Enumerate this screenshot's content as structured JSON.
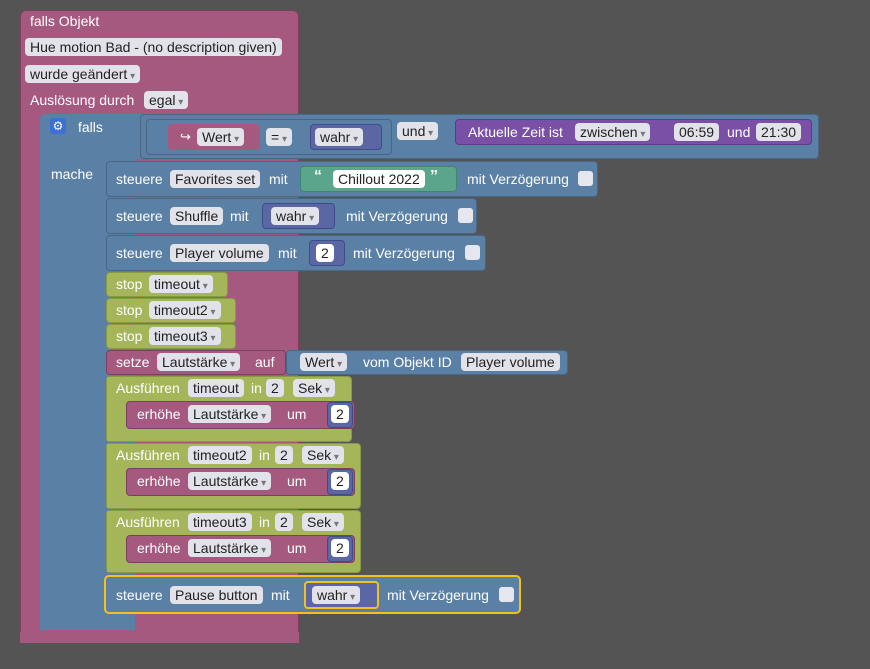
{
  "event_block": {
    "title": "falls Objekt",
    "object_field": "Hue motion Bad - (no description given)",
    "change_dropdown": "wurde geändert",
    "trigger_label": "Auslösung durch",
    "trigger_dropdown": "egal"
  },
  "if_block": {
    "falls_label": "falls",
    "mache_label": "mache",
    "condition": {
      "var_dropdown": "Wert",
      "operator": "=",
      "value_dropdown": "wahr",
      "and_dropdown": "und",
      "time_label": "Aktuelle Zeit ist",
      "range_dropdown": "zwischen",
      "time_start": "06:59",
      "time_and": "und",
      "time_end": "21:30"
    }
  },
  "statements": {
    "steuere_label": "steuere",
    "mit_label": "mit",
    "delay_label": "mit Verzögerung",
    "stop_label": "stop",
    "favorites": {
      "target": "Favorites set",
      "string_value": "Chillout 2022"
    },
    "shuffle": {
      "target": "Shuffle",
      "value": "wahr"
    },
    "volume": {
      "target": "Player volume",
      "value": "2"
    },
    "stops": [
      "timeout",
      "timeout2",
      "timeout3"
    ],
    "set_block": {
      "label": "setze",
      "variable": "Lautstärke",
      "on_label": "auf",
      "value_dropdown": "Wert",
      "from_label": "vom Objekt ID",
      "object_id": "Player volume"
    },
    "timeouts": [
      {
        "run_label": "Ausführen",
        "name": "timeout",
        "in_label": "in",
        "amount": "2",
        "unit": "Sek",
        "inc_label": "erhöhe",
        "variable": "Lautstärke",
        "by_label": "um",
        "by_value": "2"
      },
      {
        "run_label": "Ausführen",
        "name": "timeout2",
        "in_label": "in",
        "amount": "2",
        "unit": "Sek",
        "inc_label": "erhöhe",
        "variable": "Lautstärke",
        "by_label": "um",
        "by_value": "2"
      },
      {
        "run_label": "Ausführen",
        "name": "timeout3",
        "in_label": "in",
        "amount": "2",
        "unit": "Sek",
        "inc_label": "erhöhe",
        "variable": "Lautstärke",
        "by_label": "um",
        "by_value": "2"
      }
    ],
    "pause": {
      "target": "Pause button",
      "value": "wahr"
    }
  },
  "icons": {
    "gear": "gear-icon",
    "quote_open": "open-quote-icon",
    "quote_close": "close-quote-icon",
    "arrow": "return-arrow-icon"
  },
  "colors": {
    "background": "#545454",
    "event": "#a5597f",
    "control": "#5b80a5",
    "logic": "#5b67a5",
    "text_string": "#5ba58c",
    "timer": "#a5b65a",
    "variable": "#a55b80",
    "time": "#7950a5",
    "selection": "#f2c21c"
  }
}
